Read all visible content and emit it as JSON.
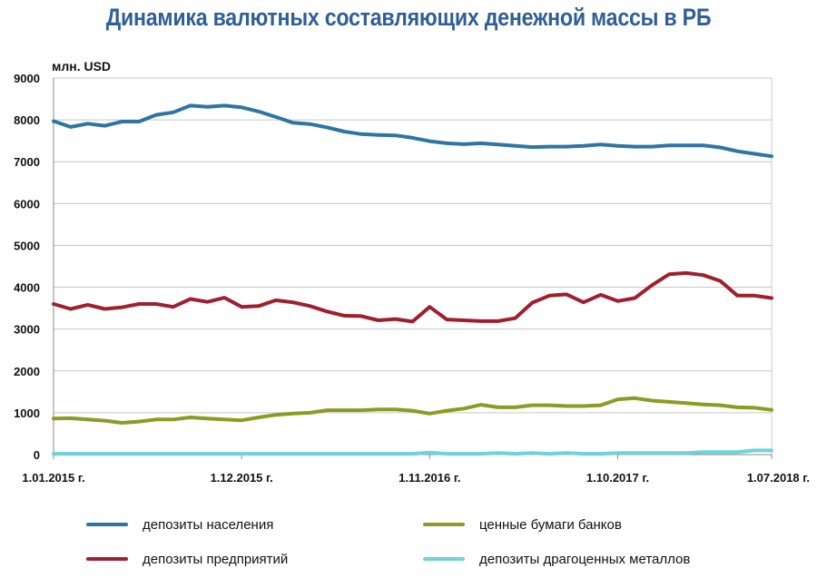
{
  "chart_data": {
    "type": "line",
    "title": "Динамика валютных составляющих денежной массы в РБ",
    "ylabel": "млн. USD",
    "xlabel": "",
    "ylim": [
      0,
      9000
    ],
    "yticks": [
      0,
      1000,
      2000,
      3000,
      4000,
      5000,
      6000,
      7000,
      8000,
      9000
    ],
    "grid": true,
    "legend_position": "bottom",
    "x_tick_labels": [
      {
        "index": 0,
        "label": "1.01.2015 г."
      },
      {
        "index": 11,
        "label": "1.12.2015 г."
      },
      {
        "index": 22,
        "label": "1.11.2016 г."
      },
      {
        "index": 33,
        "label": "1.10.2017 г."
      },
      {
        "index": 42,
        "label": "1.07.2018 г."
      }
    ],
    "series": [
      {
        "name": "депозиты населения",
        "color": "#2e75a3",
        "values": [
          7970,
          7830,
          7910,
          7860,
          7960,
          7960,
          8120,
          8180,
          8340,
          8310,
          8340,
          8300,
          8200,
          8070,
          7930,
          7900,
          7820,
          7720,
          7660,
          7640,
          7630,
          7570,
          7490,
          7440,
          7420,
          7440,
          7410,
          7380,
          7350,
          7360,
          7360,
          7380,
          7410,
          7380,
          7360,
          7360,
          7390,
          7390,
          7390,
          7340,
          7250,
          7190,
          7130
        ]
      },
      {
        "name": "депозиты предприятий",
        "color": "#a01f2e",
        "values": [
          3600,
          3480,
          3580,
          3480,
          3520,
          3600,
          3600,
          3530,
          3720,
          3650,
          3750,
          3530,
          3550,
          3690,
          3640,
          3550,
          3420,
          3320,
          3310,
          3210,
          3240,
          3180,
          3530,
          3230,
          3210,
          3190,
          3190,
          3260,
          3630,
          3800,
          3830,
          3640,
          3820,
          3670,
          3740,
          4050,
          4310,
          4340,
          4290,
          4150,
          3800,
          3800,
          3740
        ]
      },
      {
        "name": "ценные бумаги банков",
        "color": "#8d9a23",
        "values": [
          860,
          870,
          840,
          810,
          760,
          790,
          840,
          840,
          890,
          860,
          840,
          820,
          890,
          950,
          980,
          1000,
          1060,
          1060,
          1060,
          1080,
          1080,
          1050,
          980,
          1050,
          1100,
          1190,
          1130,
          1130,
          1180,
          1180,
          1160,
          1160,
          1180,
          1320,
          1350,
          1290,
          1260,
          1230,
          1200,
          1180,
          1130,
          1120,
          1070
        ]
      },
      {
        "name": "депозиты драгоценных металлов",
        "color": "#6fd3d6",
        "values": [
          20,
          20,
          20,
          20,
          20,
          20,
          20,
          20,
          20,
          20,
          20,
          20,
          20,
          20,
          20,
          20,
          20,
          20,
          20,
          20,
          20,
          20,
          50,
          20,
          20,
          20,
          40,
          20,
          40,
          20,
          40,
          20,
          20,
          40,
          40,
          40,
          40,
          40,
          60,
          60,
          60,
          100,
          100
        ]
      }
    ]
  }
}
